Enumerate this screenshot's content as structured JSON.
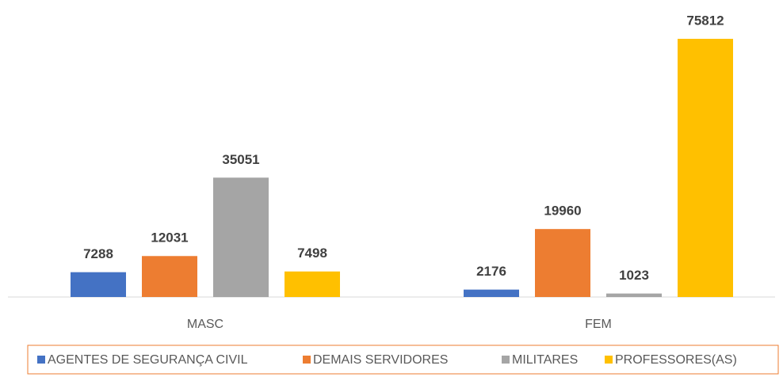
{
  "chart_data": {
    "type": "bar",
    "categories": [
      "MASC",
      "FEM"
    ],
    "series": [
      {
        "name": "AGENTES DE SEGURANÇA CIVIL",
        "color": "#4472c4",
        "values": [
          7288,
          2176
        ]
      },
      {
        "name": "DEMAIS SERVIDORES",
        "color": "#ed7d31",
        "values": [
          12031,
          19960
        ]
      },
      {
        "name": "MILITARES",
        "color": "#a5a5a5",
        "values": [
          35051,
          1023
        ]
      },
      {
        "name": "PROFESSORES(AS)",
        "color": "#ffc000",
        "values": [
          7498,
          75812
        ]
      }
    ],
    "legend": "bottom"
  }
}
